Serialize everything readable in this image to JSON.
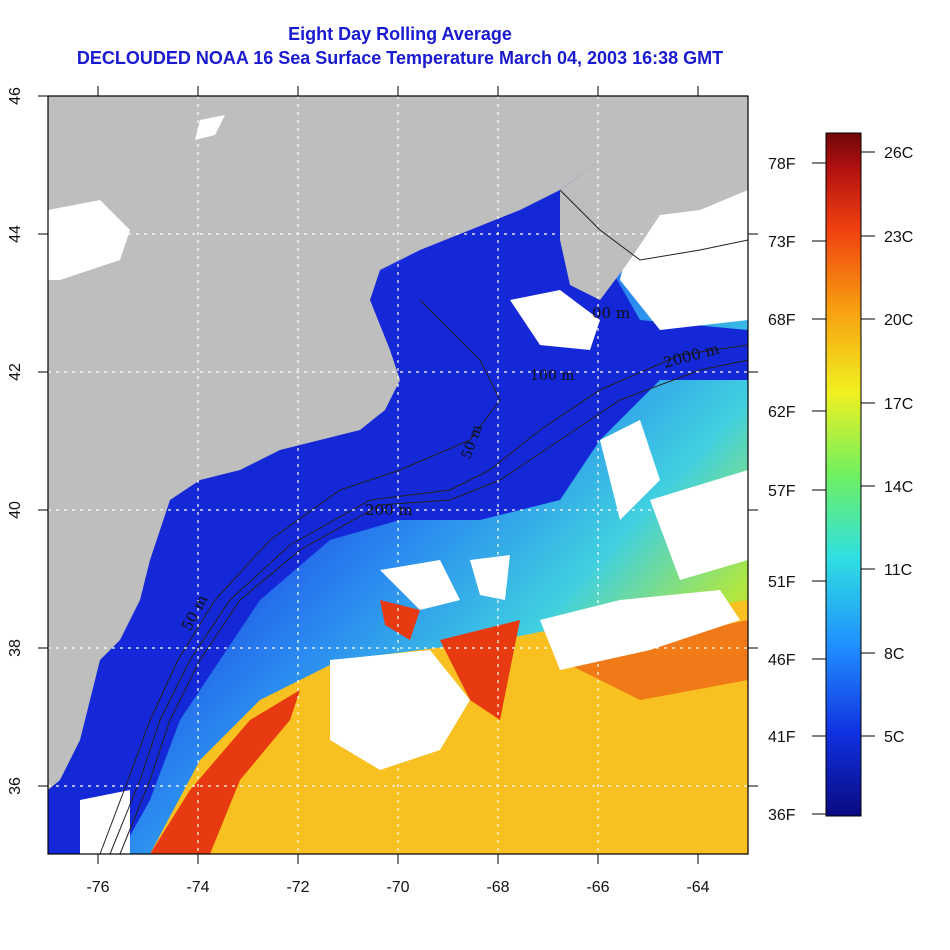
{
  "header": {
    "title": "Eight Day Rolling Average",
    "subtitle": "DECLOUDED NOAA 16 Sea Surface Temperature March 04, 2003 16:38 GMT"
  },
  "map": {
    "x_ticks": [
      "-76",
      "-74",
      "-72",
      "-70",
      "-68",
      "-66",
      "-64"
    ],
    "y_ticks": [
      "36",
      "38",
      "40",
      "42",
      "44",
      "46"
    ],
    "contour_labels": [
      "50 m",
      "200 m",
      "50 m",
      "100 m",
      "200 m",
      "2000 m",
      "00 m"
    ],
    "colors": {
      "land": "#bebebe",
      "cloud": "#ffffff",
      "gulf_stream": "#e83a10"
    }
  },
  "colorbar": {
    "celsius": [
      "26C",
      "23C",
      "20C",
      "17C",
      "14C",
      "11C",
      "8C",
      "5C"
    ],
    "fahrenheit": [
      "78F",
      "73F",
      "68F",
      "62F",
      "57F",
      "51F",
      "46F",
      "41F",
      "36F"
    ],
    "colors": [
      "#0a0a80",
      "#1030e0",
      "#2090ff",
      "#30e0e0",
      "#70f060",
      "#f0f020",
      "#f8a010",
      "#f04010",
      "#b01010",
      "#700808"
    ]
  }
}
